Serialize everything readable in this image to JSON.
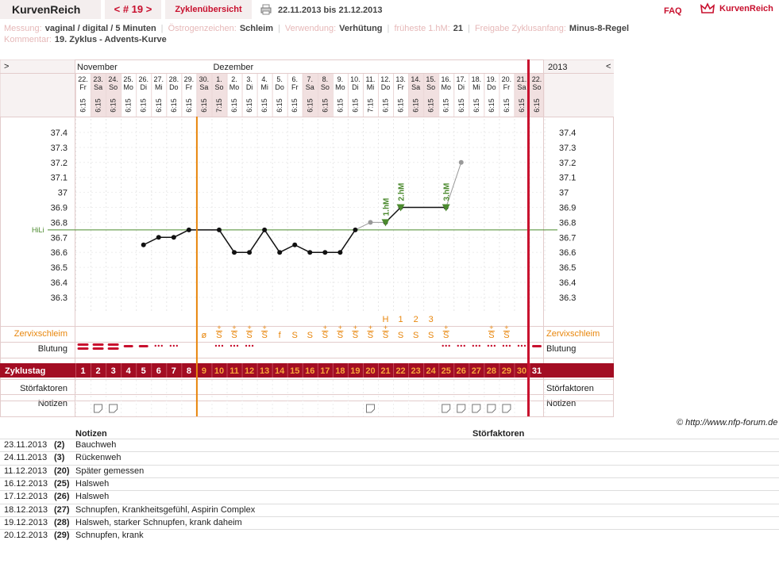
{
  "app": {
    "brand": "KurvenReich",
    "cycle_number": "< # 19 >",
    "cycle_overview": "Zyklenübersicht",
    "date_range": "22.11.2013 bis 21.12.2013",
    "faq": "FAQ",
    "logo_text": "KurvenReich"
  },
  "info": {
    "messung_label": "Messung:",
    "messung_value": "vaginal / digital / 5 Minuten",
    "oestrogen_label": "Östrogenzeichen:",
    "oestrogen_value": "Schleim",
    "verwendung_label": "Verwendung:",
    "verwendung_value": "Verhütung",
    "frueheste_label": "früheste 1.hM:",
    "frueheste_value": "21",
    "freigabe_label": "Freigabe Zyklusanfang:",
    "freigabe_value": "Minus-8-Regel",
    "kommentar_label": "Kommentar:",
    "kommentar_value": "19. Zyklus - Advents-Kurve"
  },
  "chart_data": {
    "type": "line",
    "months": [
      {
        "label": "November",
        "start_index": 0
      },
      {
        "label": "Dezember",
        "start_index": 9
      }
    ],
    "year": "2013",
    "nav_left": ">",
    "nav_right": "<",
    "dates": [
      "22.",
      "23.",
      "24.",
      "25.",
      "26.",
      "27.",
      "28.",
      "29.",
      "30.",
      "1.",
      "2.",
      "3.",
      "4.",
      "5.",
      "6.",
      "7.",
      "8.",
      "9.",
      "10.",
      "11.",
      "12.",
      "13.",
      "14.",
      "15.",
      "16.",
      "17.",
      "18.",
      "19.",
      "20.",
      "21.",
      "22."
    ],
    "weekdays": [
      "Fr",
      "Sa",
      "So",
      "Mo",
      "Di",
      "Mi",
      "Do",
      "Fr",
      "Sa",
      "So",
      "Mo",
      "Di",
      "Mi",
      "Do",
      "Fr",
      "Sa",
      "So",
      "Mo",
      "Di",
      "Mi",
      "Do",
      "Fr",
      "Sa",
      "So",
      "Mo",
      "Di",
      "Mi",
      "Do",
      "Fr",
      "Sa",
      "So"
    ],
    "times": [
      "6:15",
      "6:15",
      "6:15",
      "6:15",
      "6:15",
      "6:15",
      "6:15",
      "6:15",
      "6:15",
      "7:15",
      "6:15",
      "6:15",
      "6:15",
      "6:15",
      "6:15",
      "6:15",
      "6:15",
      "6:15",
      "6:15",
      "7:15",
      "6:15",
      "6:15",
      "6:15",
      "6:15",
      "6:15",
      "6:15",
      "6:15",
      "6:15",
      "6:15",
      "6:15",
      "6:15"
    ],
    "cycle_days": [
      "1",
      "2",
      "3",
      "4",
      "5",
      "6",
      "7",
      "8",
      "9",
      "10",
      "11",
      "12",
      "13",
      "14",
      "15",
      "16",
      "17",
      "18",
      "19",
      "20",
      "21",
      "22",
      "23",
      "24",
      "25",
      "26",
      "27",
      "28",
      "29",
      "30",
      "31"
    ],
    "y_ticks": [
      "37.4",
      "37.3",
      "37.2",
      "37.1",
      "37",
      "36.9",
      "36.8",
      "36.7",
      "36.6",
      "36.5",
      "36.4",
      "36.3"
    ],
    "ylim": [
      36.3,
      37.4
    ],
    "hili_label": "HiLi",
    "hili_value": 36.75,
    "temperatures": [
      null,
      null,
      null,
      null,
      36.65,
      36.7,
      36.7,
      36.75,
      null,
      36.75,
      36.6,
      36.6,
      36.75,
      36.6,
      36.65,
      36.6,
      36.6,
      36.6,
      36.75,
      36.8,
      36.8,
      36.9,
      null,
      null,
      36.9,
      37.2,
      null,
      null,
      null,
      null,
      null
    ],
    "grey_points": [
      19,
      25
    ],
    "high_markers": [
      {
        "day_index": 20,
        "label": "1.hM"
      },
      {
        "day_index": 21,
        "label": "2.hM"
      },
      {
        "day_index": 24,
        "label": "3.hM"
      }
    ],
    "peak_labels": [
      {
        "day_index": 20,
        "label": "H"
      },
      {
        "day_index": 21,
        "label": "1"
      },
      {
        "day_index": 22,
        "label": "2"
      },
      {
        "day_index": 23,
        "label": "3"
      }
    ],
    "mucus": [
      "",
      "",
      "",
      "",
      "",
      "",
      "",
      "",
      "ø",
      "S+",
      "S+",
      "S+",
      "S+",
      "f",
      "S",
      "S",
      "S+",
      "S+",
      "S+",
      "S+",
      "S+",
      "S",
      "S",
      "S",
      "S+",
      "",
      "",
      "S+",
      "S+",
      "",
      ""
    ],
    "bleeding": [
      "heavy",
      "heavy",
      "heavy",
      "medium",
      "medium",
      "light",
      "light",
      "",
      "",
      "light",
      "light",
      "light",
      "",
      "",
      "",
      "",
      "",
      "",
      "",
      "",
      "",
      "",
      "",
      "",
      "light",
      "light",
      "light",
      "light",
      "light",
      "light",
      "medium"
    ],
    "notes_days": [
      1,
      2,
      19,
      24,
      25,
      26,
      27,
      28
    ],
    "row_labels": {
      "mucus": "Zervixschleim",
      "bleeding": "Blutung",
      "cycle_day": "Zyklustag",
      "disturbances": "Störfaktoren",
      "notes": "Notizen"
    },
    "orange_line_index": 8,
    "red_line_index": 30
  },
  "copyright": "© http://www.nfp-forum.de",
  "notes": {
    "header_notes": "Notizen",
    "header_disturbances": "Störfaktoren",
    "rows": [
      {
        "date": "23.11.2013",
        "day": "(2)",
        "text": "Bauchweh"
      },
      {
        "date": "24.11.2013",
        "day": "(3)",
        "text": "Rückenweh"
      },
      {
        "date": "11.12.2013",
        "day": "(20)",
        "text": "Später gemessen"
      },
      {
        "date": "16.12.2013",
        "day": "(25)",
        "text": "Halsweh"
      },
      {
        "date": "17.12.2013",
        "day": "(26)",
        "text": "Halsweh"
      },
      {
        "date": "18.12.2013",
        "day": "(27)",
        "text": "Schnupfen, Krankheitsgefühl, Aspirin Complex"
      },
      {
        "date": "19.12.2013",
        "day": "(28)",
        "text": "Halsweh, starker Schnupfen, krank daheim"
      },
      {
        "date": "20.12.2013",
        "day": "(29)",
        "text": "Schnupfen, krank"
      }
    ]
  }
}
